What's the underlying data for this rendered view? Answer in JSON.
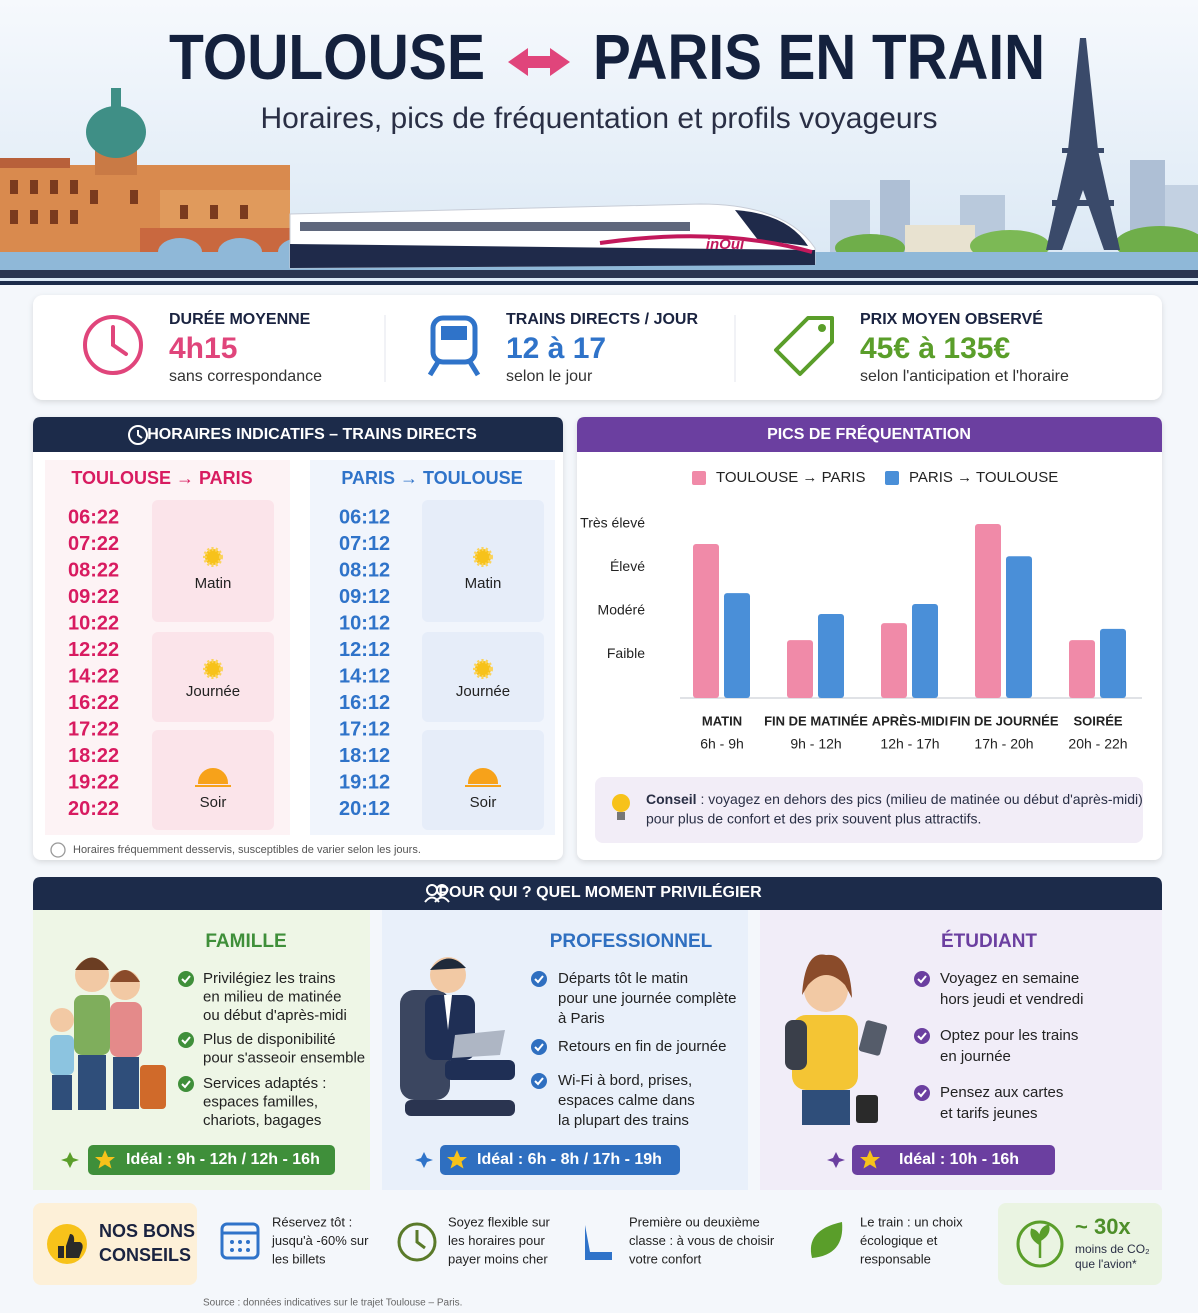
{
  "header": {
    "title_left": "TOULOUSE",
    "title_right": "PARIS EN TRAIN",
    "subtitle": "Horaires, pics de fréquentation et profils voyageurs",
    "train_brand": "inOui"
  },
  "stats": [
    {
      "label": "DURÉE MOYENNE",
      "value": "4h15",
      "note": "sans correspondance"
    },
    {
      "label": "TRAINS DIRECTS / JOUR",
      "value": "12 à 17",
      "note": "selon le jour"
    },
    {
      "label": "PRIX MOYEN OBSERVÉ",
      "value": "45€ à 135€",
      "note": "selon l'anticipation et l'horaire"
    }
  ],
  "schedule": {
    "title": "HORAIRES INDICATIFS – TRAINS DIRECTS",
    "directions": [
      {
        "heading": "TOULOUSE → PARIS",
        "times": [
          "06:22",
          "07:22",
          "08:22",
          "09:22",
          "10:22",
          "12:22",
          "14:22",
          "16:22",
          "17:22",
          "18:22",
          "19:22",
          "20:22"
        ],
        "periods": [
          "Matin",
          "Journée",
          "Soir"
        ]
      },
      {
        "heading": "PARIS → TOULOUSE",
        "times": [
          "06:12",
          "07:12",
          "08:12",
          "09:12",
          "10:12",
          "12:12",
          "14:12",
          "16:12",
          "17:12",
          "18:12",
          "19:12",
          "20:12"
        ],
        "periods": [
          "Matin",
          "Journée",
          "Soir"
        ]
      }
    ],
    "footnote": "Horaires fréquemment desservis, susceptibles de varier selon les jours."
  },
  "chart_data": {
    "type": "bar",
    "title": "PICS DE FRÉQUENTATION",
    "categories": [
      "MATIN",
      "FIN DE MATINÉE",
      "APRÈS-MIDI",
      "FIN DE JOURNÉE",
      "SOIRÉE"
    ],
    "category_ranges": [
      "6h - 9h",
      "9h - 12h",
      "12h - 17h",
      "17h - 20h",
      "20h - 22h"
    ],
    "series": [
      {
        "name": "TOULOUSE → PARIS",
        "color": "#f08aa8",
        "values": [
          3.54,
          1.33,
          1.72,
          4.0,
          1.33
        ]
      },
      {
        "name": "PARIS → TOULOUSE",
        "color": "#4a8fd8",
        "values": [
          2.41,
          1.93,
          2.16,
          3.26,
          1.59
        ]
      }
    ],
    "ylim": [
      0,
      4
    ],
    "yticks": [
      {
        "value": 1,
        "label": "Faible"
      },
      {
        "value": 2,
        "label": "Modéré"
      },
      {
        "value": 3,
        "label": "Élevé"
      },
      {
        "value": 4,
        "label": "Très élevé"
      }
    ],
    "grid": false,
    "legend": "top"
  },
  "chart_tip": {
    "label": "Conseil",
    "lines": [
      ": voyagez en dehors des pics (milieu de matinée ou début d'après-midi)",
      "pour plus de confort et des prix souvent plus attractifs."
    ]
  },
  "profiles": {
    "title": "POUR QUI ? QUEL MOMENT PRIVILÉGIER",
    "cards": [
      {
        "title": "FAMILLE",
        "items": [
          [
            "Privilégiez les trains",
            "en milieu de matinée",
            "ou début d'après-midi"
          ],
          [
            "Plus de disponibilité",
            "pour s'asseoir ensemble"
          ],
          [
            "Services adaptés :",
            "espaces familles,",
            "chariots, bagages"
          ]
        ],
        "ideal": "Idéal : 9h - 12h / 12h - 16h"
      },
      {
        "title": "PROFESSIONNEL",
        "items": [
          [
            "Départs tôt le matin",
            "pour une journée complète",
            "à Paris"
          ],
          [
            "Retours en fin de journée"
          ],
          [
            "Wi-Fi à bord, prises,",
            "espaces calme dans",
            "la plupart des trains"
          ]
        ],
        "ideal": "Idéal : 6h - 8h / 17h - 19h"
      },
      {
        "title": "ÉTUDIANT",
        "items": [
          [
            "Voyagez en semaine",
            "hors jeudi et vendredi"
          ],
          [
            "Optez pour les trains",
            "en journée"
          ],
          [
            "Pensez aux cartes",
            "et tarifs jeunes"
          ]
        ],
        "ideal": "Idéal : 10h - 16h"
      }
    ]
  },
  "tips": {
    "title": [
      "NOS BONS",
      "CONSEILS"
    ],
    "items": [
      [
        "Réservez tôt :",
        "jusqu'à -60% sur",
        "les billets"
      ],
      [
        "Soyez flexible sur",
        "les horaires pour",
        "payer moins cher"
      ],
      [
        "Première ou deuxième",
        "classe : à vous de choisir",
        "votre confort"
      ],
      [
        "Le train : un choix",
        "écologique et",
        "responsable"
      ]
    ],
    "highlight": {
      "value": "~ 30x",
      "lines": [
        "moins de CO₂",
        "que l'avion*"
      ]
    }
  },
  "source": "Source : données indicatives sur le trajet Toulouse – Paris."
}
